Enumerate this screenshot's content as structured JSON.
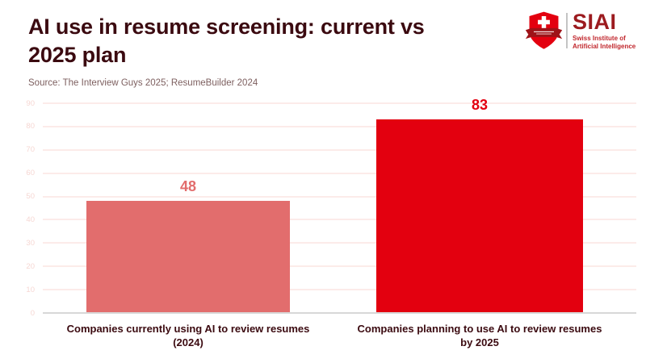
{
  "page": {
    "background": "#ffffff"
  },
  "header": {
    "title_line1": "AI use in resume screening: current vs",
    "title_line2": "2025 plan",
    "title_full": "AI use in resume screening: current vs 2025 plan",
    "title_color": "#3b0a10",
    "source": "Source: The Interview Guys 2025; ResumeBuilder 2024",
    "source_color": "#7d5f5f"
  },
  "logo": {
    "acronym": "SIAI",
    "tagline_line1": "Swiss Institute of",
    "tagline_line2": "Artificial Intelligence",
    "acronym_color": "#9c1b1f",
    "tagline_color": "#c1272d",
    "shield_color": "#e3000f",
    "banner_color": "#9e1318",
    "cross_color": "#ffffff",
    "divider_color": "#c4c4c4"
  },
  "chart_data": {
    "type": "bar",
    "title": "AI use in resume screening: current vs 2025 plan",
    "categories": [
      "Companies currently using AI to review resumes (2024)",
      "Companies planning to use AI to review resumes by 2025"
    ],
    "category_lines": [
      [
        "Companies currently using AI to review resumes",
        "(2024)"
      ],
      [
        "Companies planning to use AI to review resumes",
        "by 2025"
      ]
    ],
    "values": [
      48,
      83
    ],
    "bar_colors": [
      "#e26d6d",
      "#e3000f"
    ],
    "value_label_colors": [
      "#e26d6d",
      "#e3000f"
    ],
    "xlabel": "",
    "ylabel": "",
    "ylim": [
      0,
      90
    ],
    "yticks": [
      0,
      10,
      20,
      30,
      40,
      50,
      60,
      70,
      80,
      90
    ],
    "grid": true,
    "legend": false,
    "gridline_color": "#fcebe9",
    "axis_line_color": "#d8d8d8",
    "tick_label_color": "#f6d7d3",
    "category_label_color": "#3b0a10"
  }
}
